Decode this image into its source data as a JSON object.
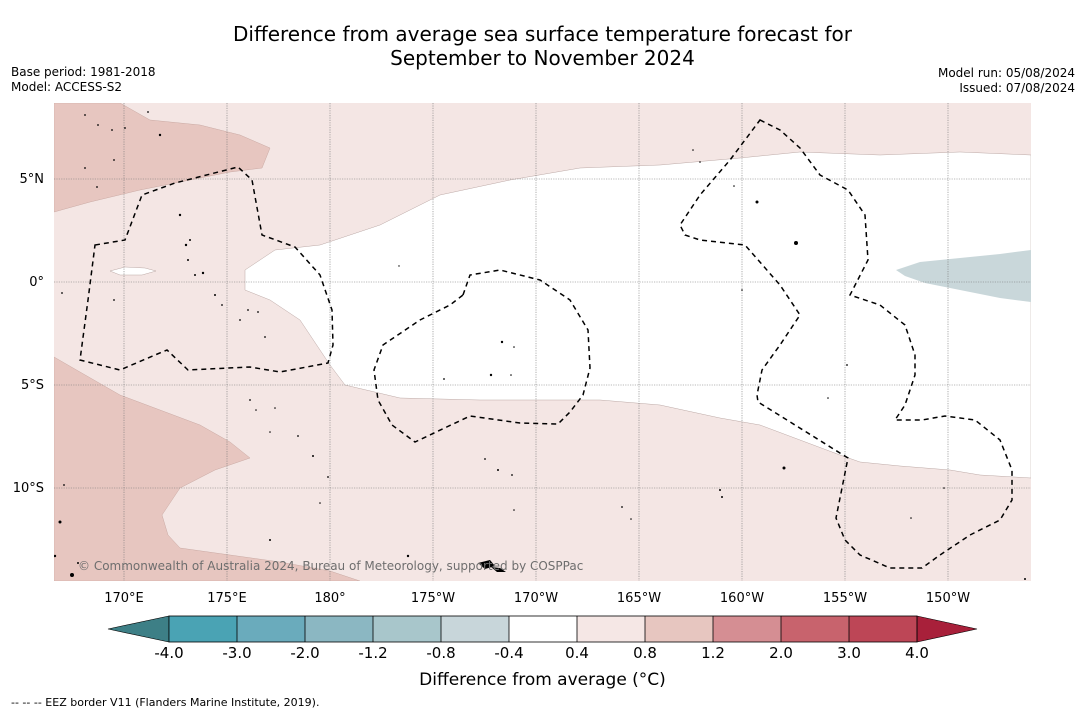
{
  "header": {
    "title_line1": "Difference from average sea surface temperature forecast for",
    "title_line2": "September to November 2024",
    "base_period": "Base period: 1981-2018",
    "model": "Model: ACCESS-S2",
    "model_run": "Model run: 05/08/2024",
    "issued": "Issued: 07/08/2024"
  },
  "map": {
    "latitude_labels": [
      "5°N",
      "0°",
      "5°S",
      "10°S"
    ],
    "longitude_labels": [
      "170°E",
      "175°E",
      "180°",
      "175°W",
      "170°W",
      "165°W",
      "160°W",
      "155°W",
      "150°W"
    ],
    "copyright": "© Commonwealth of Australia 2024, Bureau of Meteorology, supported by COSPPac",
    "colors": {
      "anomaly_0_4_to_0_8": "#f4e6e4",
      "anomaly_0_8_to_1_2": "#e7c6c0",
      "anomaly_minus_0_8_to_minus_0_4": "#c9d7da",
      "neutral": "#ffffff"
    }
  },
  "colorbar": {
    "tick_labels": [
      "-4.0",
      "-3.0",
      "-2.0",
      "-1.2",
      "-0.8",
      "-0.4",
      "0.4",
      "0.8",
      "1.2",
      "2.0",
      "3.0",
      "4.0"
    ],
    "colors": [
      "#3d7f86",
      "#4aa3b4",
      "#6aabbc",
      "#8bb7c2",
      "#a8c6cb",
      "#c8d6da",
      "#ffffff",
      "#f5e7e5",
      "#e7c6c0",
      "#d58e93",
      "#c8636d",
      "#bd4656",
      "#a8203a"
    ],
    "title": "Difference from average (°C)"
  },
  "footnote": "--  --  -- EEZ border V11 (Flanders Marine Institute, 2019)."
}
